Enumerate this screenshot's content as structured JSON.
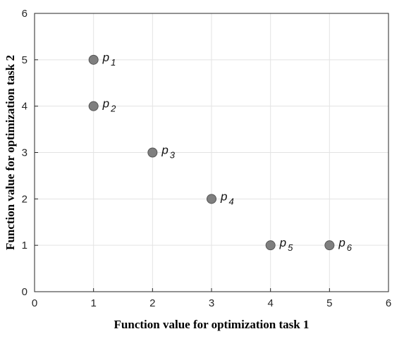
{
  "chart_data": {
    "type": "scatter",
    "xlabel": "Function value for optimization task 1",
    "ylabel": "Function value for optimization task 2",
    "xlim": [
      0,
      6
    ],
    "ylim": [
      0,
      6
    ],
    "xticks": [
      "0",
      "1",
      "2",
      "3",
      "4",
      "5",
      "6"
    ],
    "yticks": [
      "0",
      "1",
      "2",
      "3",
      "4",
      "5",
      "6"
    ],
    "grid": true,
    "points": [
      {
        "x": 1,
        "y": 5,
        "label": "p",
        "sub": "1"
      },
      {
        "x": 1,
        "y": 4,
        "label": "p",
        "sub": "2"
      },
      {
        "x": 2,
        "y": 3,
        "label": "p",
        "sub": "3"
      },
      {
        "x": 3,
        "y": 2,
        "label": "p",
        "sub": "4"
      },
      {
        "x": 4,
        "y": 1,
        "label": "p",
        "sub": "5"
      },
      {
        "x": 5,
        "y": 1,
        "label": "p",
        "sub": "6"
      }
    ],
    "colors": {
      "marker": "#7f7f7f",
      "marker_edge": "#555555",
      "grid": "#e3e3e3",
      "axis": "#262626"
    }
  }
}
